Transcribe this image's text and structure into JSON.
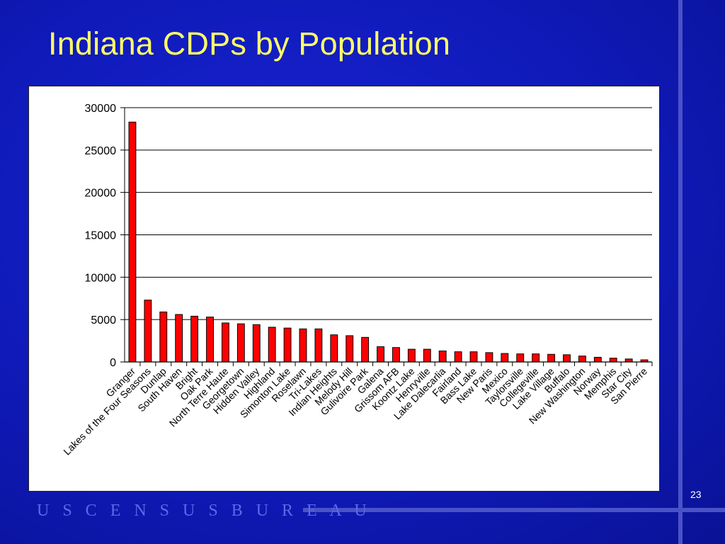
{
  "slide": {
    "title": "Indiana CDPs by Population",
    "page_number": "23",
    "footer_logo": "U S C E N S U S B U R E A U"
  },
  "colors": {
    "background": "#0f1ab8",
    "title": "#ffff66",
    "bar_fill": "#ff0000",
    "bar_stroke": "#000000",
    "logo": "#5d68e8"
  },
  "chart_data": {
    "type": "bar",
    "title": "",
    "xlabel": "",
    "ylabel": "",
    "ylim": [
      0,
      30000
    ],
    "yticks": [
      0,
      5000,
      10000,
      15000,
      20000,
      25000,
      30000
    ],
    "grid": true,
    "legend": "none",
    "categories": [
      "Granger",
      "Lakes of the Four Seasons",
      "Dunlap",
      "South Haven",
      "Bright",
      "Oak Park",
      "North Terre Haute",
      "Georgetown",
      "Hidden Valley",
      "Highland",
      "Simonton Lake",
      "Roselawn",
      "Tri-Lakes",
      "Indian Heights",
      "Melody Hill",
      "Gulivoire Park",
      "Galena",
      "Grissom AFB",
      "Koontz Lake",
      "Henryville",
      "Lake Dalecarlia",
      "Fairland",
      "Bass Lake",
      "New Paris",
      "Mexico",
      "Taylorsville",
      "Collegeville",
      "Lake Village",
      "Buffalo",
      "New Washington",
      "Norway",
      "Memphis",
      "Star City",
      "San Pierre"
    ],
    "values": [
      28300,
      7300,
      5900,
      5600,
      5400,
      5300,
      4600,
      4500,
      4400,
      4100,
      4000,
      3900,
      3900,
      3200,
      3100,
      2900,
      1800,
      1700,
      1500,
      1500,
      1300,
      1200,
      1200,
      1100,
      1000,
      950,
      950,
      900,
      850,
      700,
      550,
      450,
      350,
      250
    ]
  }
}
